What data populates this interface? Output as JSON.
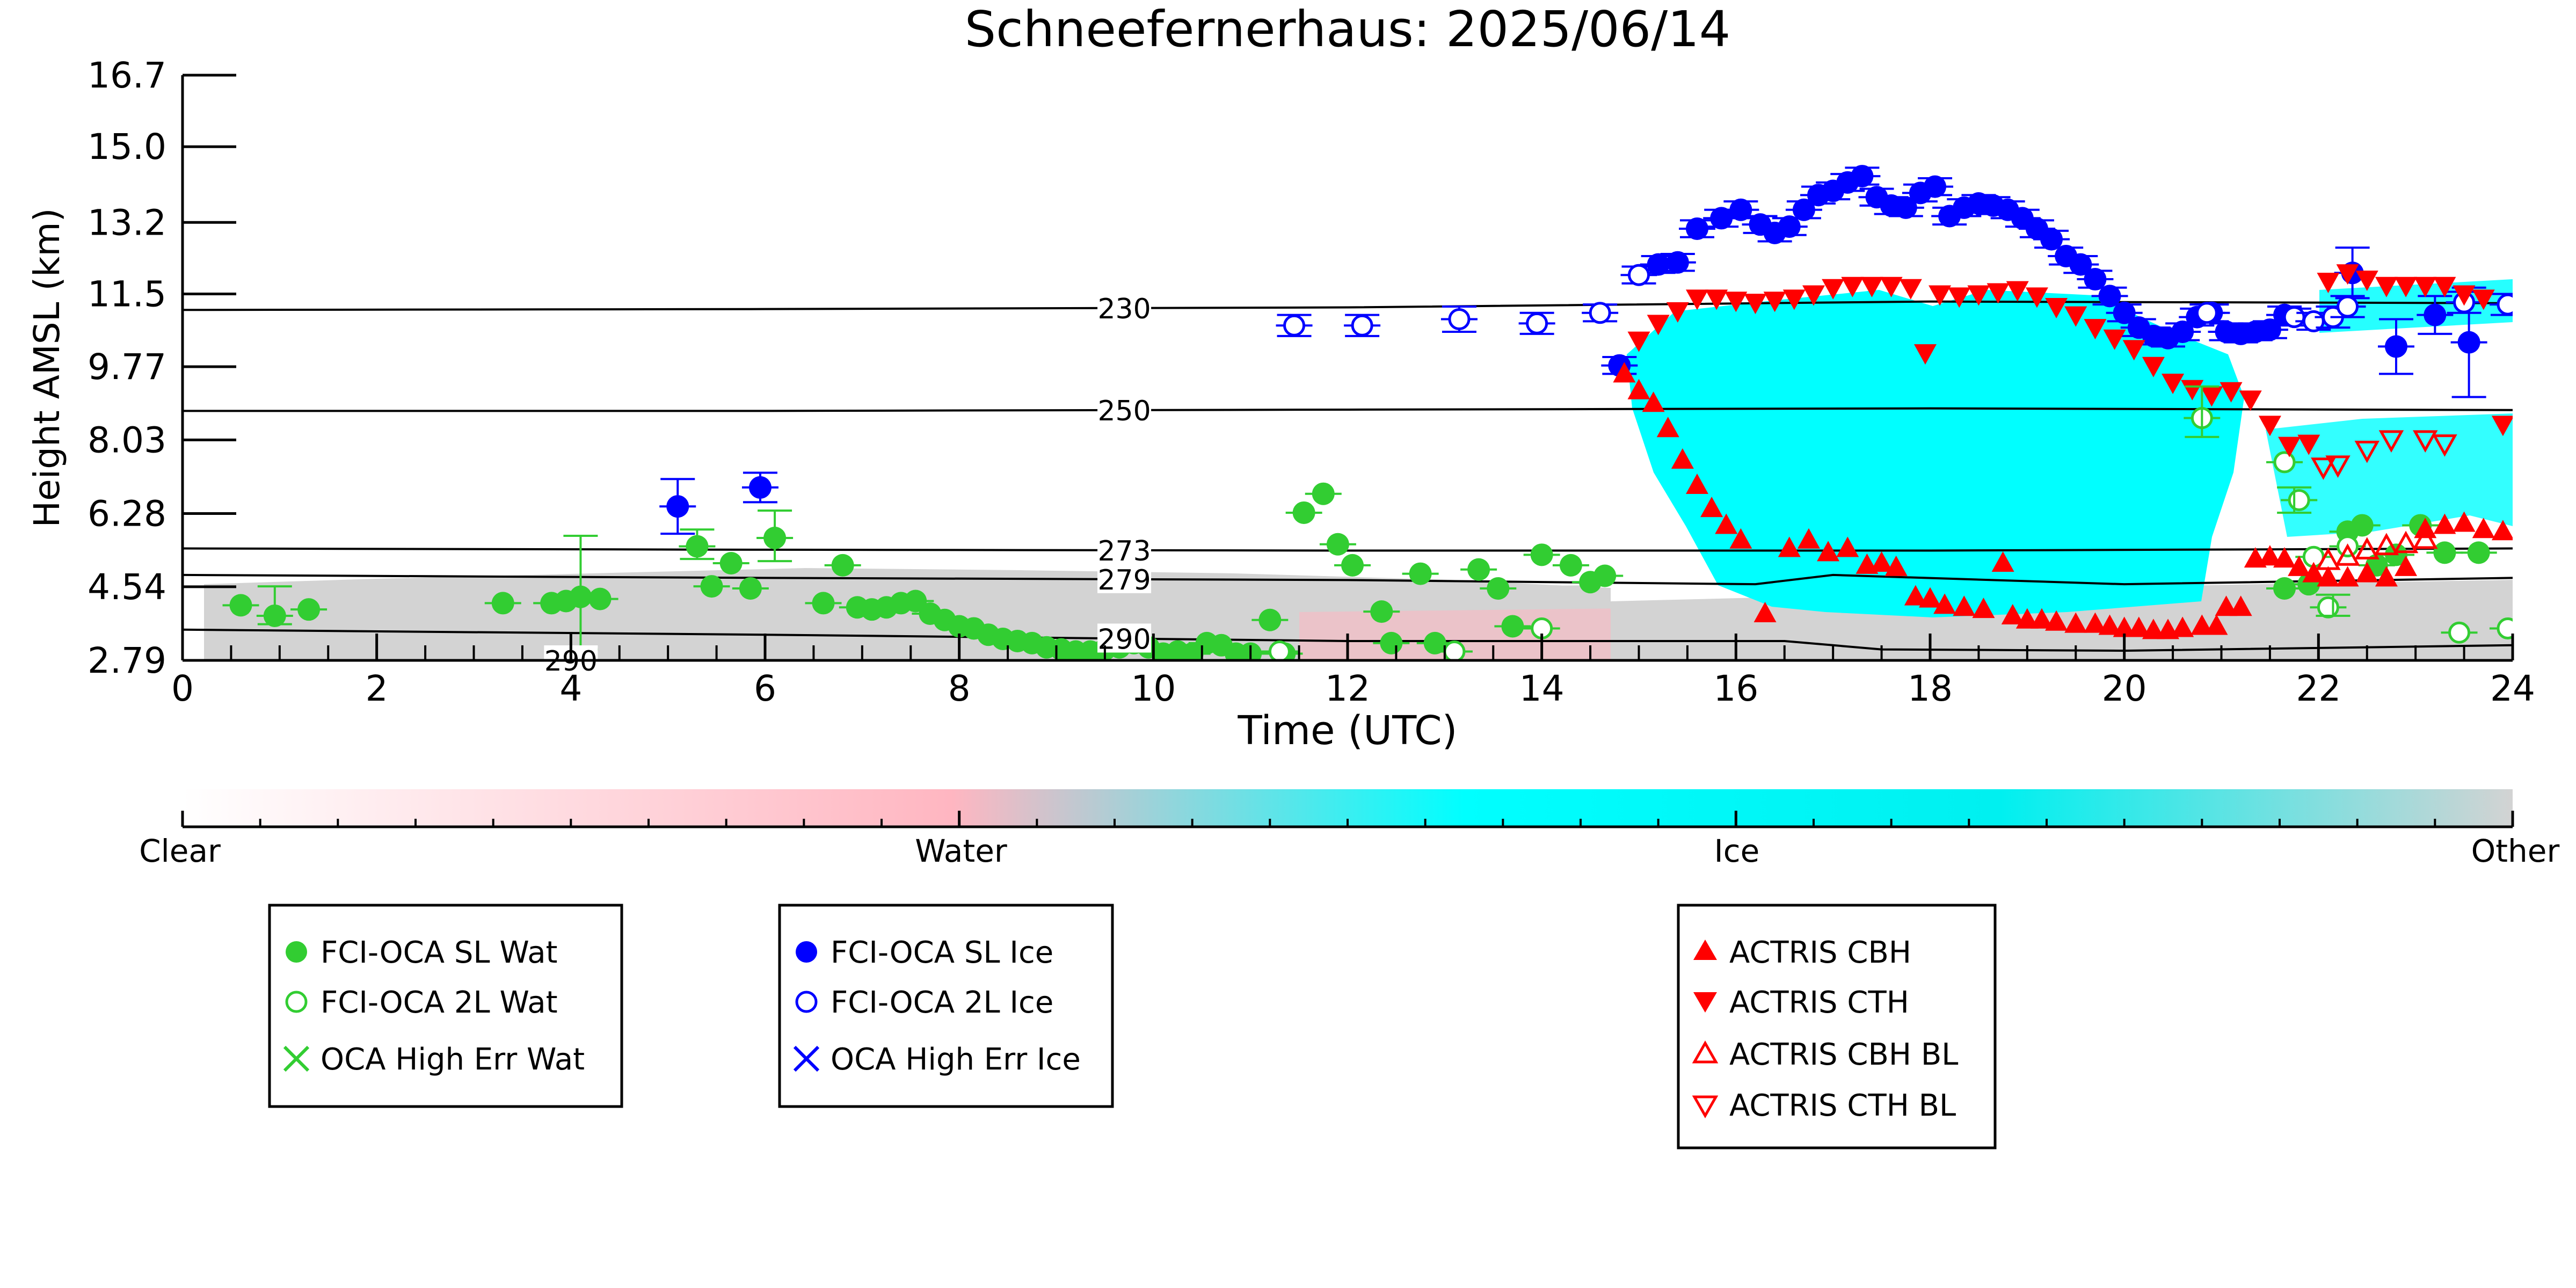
{
  "chart_data": {
    "type": "scatter",
    "title": "Schneefernerhaus: 2025/06/14",
    "xlabel": "Time (UTC)",
    "ylabel": "Height AMSL (km)",
    "xlim": [
      0,
      24
    ],
    "ylim": [
      2.79,
      16.7
    ],
    "x_ticks": [
      0,
      2,
      4,
      6,
      8,
      10,
      12,
      14,
      16,
      18,
      20,
      22,
      24
    ],
    "y_ticks": [
      2.79,
      4.54,
      6.28,
      8.03,
      9.77,
      11.5,
      13.2,
      15.0,
      16.7
    ],
    "y_tick_labels": [
      "2.79",
      "4.54",
      "6.28",
      "8.03",
      "9.77",
      "11.5",
      "13.2",
      "15.0",
      "16.7"
    ],
    "colorbar": {
      "labels": [
        "Clear",
        "Water",
        "Ice",
        "Other"
      ],
      "colors": [
        "#ffffff",
        "#ffb6c1",
        "#00ffff",
        "#d3d3d3"
      ]
    },
    "isotherms": [
      {
        "label": "230",
        "label_x": 9.7,
        "x": [
          0,
          6,
          12,
          18,
          24
        ],
        "y": [
          11.12,
          11.14,
          11.18,
          11.32,
          11.28
        ]
      },
      {
        "label": "250",
        "label_x": 9.7,
        "x": [
          0,
          6,
          12,
          18,
          24
        ],
        "y": [
          8.72,
          8.72,
          8.75,
          8.78,
          8.74
        ]
      },
      {
        "label": "273",
        "label_x": 9.7,
        "x": [
          0,
          6,
          12,
          18,
          24
        ],
        "y": [
          5.45,
          5.42,
          5.4,
          5.4,
          5.45
        ]
      },
      {
        "label": "279",
        "label_x": 9.7,
        "x": [
          0,
          6,
          12,
          16.2,
          17,
          20,
          24
        ],
        "y": [
          4.82,
          4.75,
          4.7,
          4.6,
          4.82,
          4.6,
          4.75
        ]
      },
      {
        "label": "290",
        "label_x": 9.7,
        "x": [
          0,
          6,
          12,
          16.5,
          17.5,
          20,
          24
        ],
        "y": [
          3.52,
          3.4,
          3.25,
          3.25,
          3.05,
          3.02,
          3.15
        ]
      },
      {
        "label": "290",
        "label_x": 4.0,
        "x": [],
        "y": []
      }
    ],
    "legend_groups": [
      [
        "FCI-OCA SL Wat",
        "FCI-OCA 2L Wat",
        "OCA High Err Wat"
      ],
      [
        "FCI-OCA SL Ice",
        "FCI-OCA 2L Ice",
        "OCA High Err Ice"
      ],
      [
        "ACTRIS CBH",
        "ACTRIS CTH",
        "ACTRIS CBH BL",
        "ACTRIS CTH BL"
      ]
    ],
    "series": [
      {
        "name": "FCI-OCA SL Wat",
        "color": "#32cd32",
        "marker": "filled-circle",
        "x": [
          0.6,
          0.95,
          1.3,
          3.3,
          3.8,
          3.95,
          4.1,
          4.3,
          5.3,
          5.45,
          5.65,
          5.85,
          6.1,
          6.6,
          6.8,
          6.95,
          7.1,
          7.25,
          7.4,
          7.55,
          7.7,
          7.85,
          8.0,
          8.15,
          8.3,
          8.45,
          8.6,
          8.75,
          8.9,
          9.05,
          9.2,
          9.35,
          9.5,
          9.65,
          9.8,
          9.95,
          10.1,
          10.25,
          10.4,
          10.55,
          10.7,
          10.85,
          11.0,
          11.2,
          11.35,
          11.55,
          11.75,
          11.9,
          12.05,
          12.35,
          12.45,
          12.75,
          12.9,
          13.35,
          13.55,
          13.7,
          14.0,
          14.3,
          14.5,
          14.65,
          21.65,
          21.9,
          22.3,
          22.45,
          22.6,
          22.8,
          23.05,
          23.3,
          23.65
        ],
        "y": [
          4.1,
          3.85,
          4.0,
          4.15,
          4.15,
          4.2,
          4.3,
          4.25,
          5.5,
          4.55,
          5.1,
          4.5,
          5.7,
          4.15,
          5.05,
          4.05,
          4.0,
          4.05,
          4.15,
          4.2,
          3.9,
          3.75,
          3.6,
          3.55,
          3.4,
          3.3,
          3.25,
          3.2,
          3.1,
          3.05,
          3.0,
          3.0,
          3.05,
          3.1,
          3.2,
          3.1,
          2.95,
          3.0,
          2.95,
          3.2,
          3.15,
          2.95,
          2.95,
          3.75,
          2.95,
          6.3,
          6.75,
          5.55,
          5.05,
          3.95,
          3.2,
          4.85,
          3.2,
          4.95,
          4.5,
          3.6,
          5.3,
          5.05,
          4.65,
          4.8,
          4.5,
          4.6,
          5.85,
          6.0,
          5.05,
          5.3,
          6.0,
          5.35,
          5.35
        ]
      },
      {
        "name": "FCI-OCA 2L Wat",
        "color": "#32cd32",
        "marker": "open-circle",
        "x": [
          11.3,
          13.1,
          14.0,
          20.8,
          21.65,
          21.8,
          21.95,
          22.1,
          22.3,
          23.45,
          23.95
        ],
        "y": [
          3.0,
          3.0,
          3.55,
          8.55,
          7.5,
          6.6,
          5.25,
          4.05,
          5.5,
          3.45,
          3.55
        ]
      },
      {
        "name": "FCI-OCA SL Ice",
        "color": "#0000ff",
        "marker": "filled-circle",
        "x": [
          5.1,
          5.95,
          14.8,
          15.2,
          15.4,
          15.6,
          15.85,
          16.05,
          16.25,
          16.4,
          16.55,
          16.7,
          16.85,
          17.0,
          17.15,
          17.3,
          17.45,
          17.6,
          17.75,
          17.9,
          18.05,
          18.2,
          18.35,
          18.5,
          18.65,
          18.8,
          18.95,
          19.1,
          19.25,
          19.4,
          19.55,
          19.7,
          19.85,
          20.0,
          20.15,
          20.3,
          20.45,
          20.6,
          20.75,
          20.9,
          21.05,
          21.2,
          21.35,
          21.5,
          21.65,
          22.35,
          22.8,
          23.2,
          23.55
        ],
        "y": [
          6.45,
          6.9,
          9.8,
          12.2,
          12.25,
          13.05,
          13.3,
          13.5,
          13.15,
          12.95,
          13.1,
          13.5,
          13.85,
          13.95,
          14.15,
          14.3,
          13.8,
          13.6,
          13.55,
          13.9,
          14.05,
          13.35,
          13.55,
          13.65,
          13.6,
          13.5,
          13.3,
          13.05,
          12.8,
          12.4,
          12.2,
          11.85,
          11.45,
          11.05,
          10.7,
          10.5,
          10.45,
          10.6,
          10.95,
          11.05,
          10.6,
          10.55,
          10.6,
          10.65,
          11.0,
          12.0,
          10.25,
          11.0,
          10.35
        ],
        "yerr": [
          0.65,
          0.35,
          0.2,
          0.2,
          0.2,
          0.2,
          0.2,
          0.2,
          0.2,
          0.2,
          0.2,
          0.2,
          0.2,
          0.2,
          0.2,
          0.2,
          0.2,
          0.2,
          0.2,
          0.2,
          0.2,
          0.2,
          0.2,
          0.2,
          0.2,
          0.2,
          0.2,
          0.2,
          0.2,
          0.2,
          0.2,
          0.2,
          0.2,
          0.2,
          0.2,
          0.2,
          0.2,
          0.2,
          0.2,
          0.2,
          0.2,
          0.2,
          0.2,
          0.2,
          0.2,
          0.6,
          0.65,
          0.45,
          1.3
        ]
      },
      {
        "name": "FCI-OCA 2L Ice",
        "color": "#0000ff",
        "marker": "open-circle",
        "x": [
          11.45,
          12.15,
          13.15,
          13.95,
          14.6,
          15.0,
          20.85,
          21.75,
          21.95,
          22.15,
          22.3,
          23.5,
          23.95
        ],
        "y": [
          10.75,
          10.75,
          10.9,
          10.8,
          11.05,
          11.95,
          11.05,
          10.95,
          10.85,
          10.95,
          11.2,
          11.3,
          11.25
        ],
        "yerr": [
          0.25,
          0.25,
          0.3,
          0.25,
          0.2,
          0.2,
          0.2,
          0.2,
          0.2,
          0.25,
          0.25,
          0.25,
          0.25
        ]
      },
      {
        "name": "ACTRIS CBH",
        "color": "#ff0000",
        "marker": "filled-triangle-up",
        "x": [
          14.85,
          15.0,
          15.15,
          15.3,
          15.45,
          15.6,
          15.75,
          15.9,
          16.05,
          16.3,
          16.55,
          16.75,
          16.95,
          17.15,
          17.35,
          17.5,
          17.65,
          17.85,
          18.0,
          18.15,
          18.35,
          18.55,
          18.75,
          18.85,
          19.0,
          19.15,
          19.3,
          19.5,
          19.7,
          19.85,
          20.0,
          20.15,
          20.3,
          20.45,
          20.6,
          20.8,
          20.95,
          21.05,
          21.2,
          21.35,
          21.5,
          21.65,
          21.8,
          21.95,
          22.1,
          22.3,
          22.5,
          22.7,
          22.9,
          23.1,
          23.3,
          23.5,
          23.7,
          23.9
        ],
        "y": [
          9.6,
          9.2,
          8.9,
          8.3,
          7.55,
          6.95,
          6.4,
          6.0,
          5.65,
          3.9,
          5.45,
          5.65,
          5.35,
          5.45,
          5.05,
          5.1,
          5.0,
          4.3,
          4.25,
          4.1,
          4.05,
          4.0,
          5.1,
          3.85,
          3.75,
          3.75,
          3.7,
          3.65,
          3.65,
          3.6,
          3.55,
          3.55,
          3.5,
          3.5,
          3.55,
          3.6,
          3.6,
          4.05,
          4.05,
          5.2,
          5.25,
          5.2,
          5.0,
          4.85,
          4.75,
          4.75,
          4.85,
          4.75,
          5.0,
          5.9,
          6.0,
          6.05,
          5.9,
          5.85
        ]
      },
      {
        "name": "ACTRIS CTH",
        "color": "#ff0000",
        "marker": "filled-triangle-down",
        "x": [
          15.0,
          15.2,
          15.4,
          15.6,
          15.8,
          16.0,
          16.2,
          16.4,
          16.6,
          16.8,
          17.0,
          17.2,
          17.4,
          17.6,
          17.8,
          17.95,
          18.1,
          18.3,
          18.5,
          18.7,
          18.9,
          19.1,
          19.3,
          19.5,
          19.7,
          19.9,
          20.1,
          20.3,
          20.5,
          20.7,
          20.9,
          21.1,
          21.3,
          21.5,
          21.7,
          21.9,
          22.1,
          22.3,
          22.5,
          22.7,
          22.9,
          23.1,
          23.3,
          23.5,
          23.7,
          23.9
        ],
        "y": [
          10.4,
          10.8,
          11.1,
          11.4,
          11.4,
          11.35,
          11.3,
          11.35,
          11.4,
          11.5,
          11.65,
          11.7,
          11.7,
          11.7,
          11.65,
          10.1,
          11.5,
          11.45,
          11.5,
          11.55,
          11.6,
          11.45,
          11.2,
          11.0,
          10.7,
          10.45,
          10.2,
          9.8,
          9.4,
          9.25,
          9.1,
          9.2,
          9.0,
          8.4,
          7.9,
          7.95,
          11.8,
          12.0,
          11.85,
          11.7,
          11.7,
          11.7,
          11.7,
          11.5,
          11.4,
          8.4
        ]
      },
      {
        "name": "ACTRIS CBH BL",
        "color": "#ff0000",
        "marker": "open-triangle-up",
        "x": [
          22.1,
          22.3,
          22.5,
          22.7,
          22.9,
          23.1
        ],
        "y": [
          5.15,
          5.25,
          5.4,
          5.5,
          5.55,
          5.65
        ]
      },
      {
        "name": "ACTRIS CTH BL",
        "color": "#ff0000",
        "marker": "open-triangle-down",
        "x": [
          22.05,
          22.2,
          22.5,
          22.75,
          23.1,
          23.3
        ],
        "y": [
          7.4,
          7.45,
          7.8,
          8.05,
          8.05,
          7.95
        ]
      },
      {
        "name": "Wat error bars",
        "color": "#32cd32",
        "marker": "errorbar",
        "x": [
          0.95,
          4.1,
          5.3,
          6.1,
          20.8,
          21.75,
          22.15
        ],
        "y": [
          4.1,
          4.4,
          5.55,
          5.75,
          8.7,
          6.6,
          4.1
        ],
        "yerr": [
          0.45,
          1.35,
          0.35,
          0.6,
          0.6,
          0.3,
          0.25
        ]
      }
    ]
  }
}
